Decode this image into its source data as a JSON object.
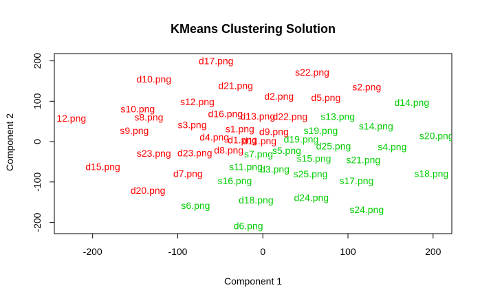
{
  "chart_data": {
    "type": "scatter",
    "title": "KMeans Clustering Solution",
    "xlabel": "Component 1",
    "ylabel": "Component 2",
    "xlim": [
      -245,
      222
    ],
    "ylim": [
      -228,
      218
    ],
    "xticks": [
      -200,
      -100,
      0,
      100,
      200
    ],
    "yticks": [
      -200,
      -100,
      0,
      100,
      200
    ],
    "grid": false,
    "colors": {
      "cluster_1": "#ff0000",
      "cluster_2": "#00cd00"
    },
    "points": [
      {
        "label": "d17.png",
        "x": -55,
        "y": 198,
        "cluster": 1
      },
      {
        "label": "s22.png",
        "x": 58,
        "y": 170,
        "cluster": 1
      },
      {
        "label": "d10.png",
        "x": -128,
        "y": 153,
        "cluster": 1
      },
      {
        "label": "d21.png",
        "x": -32,
        "y": 137,
        "cluster": 1
      },
      {
        "label": "s2.png",
        "x": 122,
        "y": 133,
        "cluster": 1
      },
      {
        "label": "d2.png",
        "x": 19,
        "y": 110,
        "cluster": 1
      },
      {
        "label": "d5.png",
        "x": 74,
        "y": 107,
        "cluster": 1
      },
      {
        "label": "s12.png",
        "x": -77,
        "y": 97,
        "cluster": 1
      },
      {
        "label": "s10.png",
        "x": -147,
        "y": 79,
        "cluster": 1
      },
      {
        "label": "d16.png",
        "x": -44,
        "y": 67,
        "cluster": 1
      },
      {
        "label": "s8.png",
        "x": -134,
        "y": 58,
        "cluster": 1
      },
      {
        "label": "12.png",
        "x": -225,
        "y": 56,
        "cluster": 1
      },
      {
        "label": "d13.png",
        "x": -6,
        "y": 61,
        "cluster": 1
      },
      {
        "label": "d22.png",
        "x": 32,
        "y": 60,
        "cluster": 1
      },
      {
        "label": "s3.png",
        "x": -83,
        "y": 40,
        "cluster": 1
      },
      {
        "label": "s1.png",
        "x": -27,
        "y": 29,
        "cluster": 1
      },
      {
        "label": "s9.png",
        "x": -151,
        "y": 25,
        "cluster": 1
      },
      {
        "label": "d9.png",
        "x": 13,
        "y": 23,
        "cluster": 1
      },
      {
        "label": "d4.png",
        "x": -57,
        "y": 9,
        "cluster": 1
      },
      {
        "label": "d1.png",
        "x": -24,
        "y": 2,
        "cluster": 1
      },
      {
        "label": "d11.png",
        "x": -4,
        "y": 0,
        "cluster": 1
      },
      {
        "label": "d8.png",
        "x": -40,
        "y": -23,
        "cluster": 1
      },
      {
        "label": "s23.png",
        "x": -128,
        "y": -31,
        "cluster": 1
      },
      {
        "label": "d23.png",
        "x": -80,
        "y": -30,
        "cluster": 1
      },
      {
        "label": "d15.png",
        "x": -188,
        "y": -64,
        "cluster": 1
      },
      {
        "label": "d7.png",
        "x": -88,
        "y": -81,
        "cluster": 1
      },
      {
        "label": "d20.png",
        "x": -135,
        "y": -123,
        "cluster": 1
      },
      {
        "label": "d14.png",
        "x": 175,
        "y": 95,
        "cluster": 2
      },
      {
        "label": "s13.png",
        "x": 88,
        "y": 60,
        "cluster": 2
      },
      {
        "label": "s14.png",
        "x": 133,
        "y": 36,
        "cluster": 2
      },
      {
        "label": "s19.png",
        "x": 68,
        "y": 25,
        "cluster": 2
      },
      {
        "label": "s20.png",
        "x": 204,
        "y": 12,
        "cluster": 2
      },
      {
        "label": "d19.png",
        "x": 45,
        "y": 4,
        "cluster": 2
      },
      {
        "label": "d25.png",
        "x": 83,
        "y": -13,
        "cluster": 2
      },
      {
        "label": "s4.png",
        "x": 152,
        "y": -15,
        "cluster": 2
      },
      {
        "label": "s5.png",
        "x": 28,
        "y": -24,
        "cluster": 2
      },
      {
        "label": "s7.png",
        "x": -5,
        "y": -33,
        "cluster": 2
      },
      {
        "label": "s15.png",
        "x": 60,
        "y": -44,
        "cluster": 2
      },
      {
        "label": "s21.png",
        "x": 118,
        "y": -47,
        "cluster": 2
      },
      {
        "label": "s11.png",
        "x": -20,
        "y": -64,
        "cluster": 2
      },
      {
        "label": "d3.png",
        "x": 14,
        "y": -70,
        "cluster": 2
      },
      {
        "label": "s25.png",
        "x": 56,
        "y": -82,
        "cluster": 2
      },
      {
        "label": "s18.png",
        "x": 198,
        "y": -81,
        "cluster": 2
      },
      {
        "label": "s16.png",
        "x": -33,
        "y": -99,
        "cluster": 2
      },
      {
        "label": "s17.png",
        "x": 110,
        "y": -99,
        "cluster": 2
      },
      {
        "label": "d24.png",
        "x": 57,
        "y": -141,
        "cluster": 2
      },
      {
        "label": "d18.png",
        "x": -8,
        "y": -147,
        "cluster": 2
      },
      {
        "label": "s6.png",
        "x": -79,
        "y": -160,
        "cluster": 2
      },
      {
        "label": "s24.png",
        "x": 122,
        "y": -171,
        "cluster": 2
      },
      {
        "label": "d6.png",
        "x": -17,
        "y": -211,
        "cluster": 2
      }
    ]
  }
}
